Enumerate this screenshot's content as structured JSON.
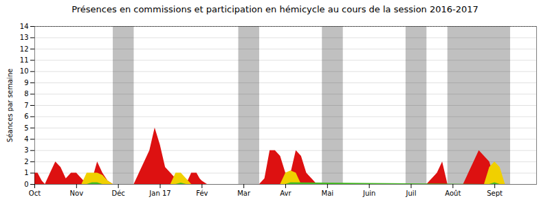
{
  "chart_data": {
    "type": "area",
    "title": "Présences en commissions et participation en hémicycle au cours de la session 2016-2017",
    "ylabel": "Séances par semaine",
    "xlim": [
      0,
      48
    ],
    "xticks": [
      {
        "value": 0,
        "label": "Oct"
      },
      {
        "value": 4,
        "label": "Nov"
      },
      {
        "value": 8,
        "label": "Déc"
      },
      {
        "value": 12,
        "label": "Jan 17"
      },
      {
        "value": 16,
        "label": "Fév"
      },
      {
        "value": 20,
        "label": "Mar"
      },
      {
        "value": 24,
        "label": "Avr"
      },
      {
        "value": 28,
        "label": "Mai"
      },
      {
        "value": 32,
        "label": "Juin"
      },
      {
        "value": 36,
        "label": "Juil"
      },
      {
        "value": 40,
        "label": "Août"
      },
      {
        "value": 44,
        "label": "Sept"
      }
    ],
    "ylim": [
      0,
      14
    ],
    "yticks": [
      0,
      1,
      2,
      3,
      4,
      5,
      6,
      7,
      8,
      9,
      10,
      11,
      12,
      13,
      14
    ],
    "grid": true,
    "bands": {
      "color": "#c0c0c0",
      "ranges": [
        [
          7.5,
          9.5
        ],
        [
          19.5,
          21.5
        ],
        [
          27.5,
          29.5
        ],
        [
          35.5,
          37.5
        ],
        [
          39.5,
          45.5
        ]
      ]
    },
    "reference_lines": [
      {
        "y": 14,
        "color": "#999999",
        "line_style": "dotted"
      }
    ],
    "series": [
      {
        "color": "#dd1111",
        "x": [
          0,
          0.3,
          0.7,
          1.0,
          1.5,
          2.0,
          2.5,
          3.0,
          3.5,
          4.0,
          4.5,
          5.0,
          5.3,
          5.7,
          6.0,
          6.5,
          7.0,
          7.5,
          9.5,
          10.0,
          10.5,
          11.0,
          11.5,
          12.0,
          12.5,
          13.0,
          13.5,
          14.0,
          14.5,
          15.0,
          15.5,
          15.8,
          16.0,
          16.5,
          17.0,
          17.5,
          18.0,
          18.5,
          19.0,
          19.5,
          21.5,
          22.0,
          22.5,
          23.0,
          23.5,
          24.0,
          24.5,
          25.0,
          25.5,
          26.0,
          26.5,
          27.0,
          27.5,
          37.5,
          38.0,
          38.5,
          39.0,
          39.5,
          41.0,
          41.5,
          42.0,
          42.5,
          43.0,
          43.5,
          44.0,
          44.5,
          45.0,
          45.5
        ],
        "values": [
          1.0,
          1.0,
          0.3,
          0.0,
          1.0,
          2.0,
          1.5,
          0.5,
          1.0,
          1.0,
          0.5,
          0.0,
          0.0,
          1.0,
          2.0,
          1.0,
          0.3,
          0.0,
          0.0,
          1.0,
          2.0,
          3.0,
          5.0,
          3.5,
          1.5,
          1.0,
          0.5,
          0.0,
          0.0,
          1.0,
          1.0,
          0.5,
          0.3,
          0.0,
          0.0,
          0.0,
          0.0,
          0.0,
          0.0,
          0.0,
          0.0,
          0.5,
          3.0,
          3.0,
          2.5,
          1.0,
          1.0,
          3.0,
          2.5,
          1.0,
          0.5,
          0.0,
          0.0,
          0.0,
          0.5,
          1.0,
          2.0,
          0.0,
          0.0,
          1.0,
          2.0,
          3.0,
          2.5,
          2.0,
          0.5,
          0.0,
          0.0,
          0.0
        ]
      },
      {
        "color": "#f0d000",
        "x": [
          4.5,
          5.0,
          5.5,
          6.0,
          6.5,
          7.0,
          7.5,
          13.0,
          13.5,
          14.0,
          14.5,
          15.0,
          15.5,
          23.5,
          24.0,
          24.5,
          25.0,
          25.5,
          43.0,
          43.5,
          44.0,
          44.5,
          45.0,
          45.5
        ],
        "values": [
          0.0,
          1.0,
          1.0,
          1.0,
          0.8,
          0.3,
          0.0,
          0.0,
          1.0,
          1.0,
          0.5,
          0.0,
          0.0,
          0.0,
          1.0,
          1.2,
          1.0,
          0.0,
          0.0,
          1.5,
          2.0,
          1.5,
          0.0,
          0.0
        ]
      },
      {
        "color": "#44bb22",
        "x": [
          5.0,
          5.5,
          6.0,
          6.5,
          13.5,
          14.0,
          14.5,
          24.0,
          24.5,
          43.5,
          44.0,
          44.5
        ],
        "values": [
          0.0,
          0.15,
          0.15,
          0.0,
          0.0,
          0.12,
          0.0,
          0.0,
          0.15,
          0.0,
          0.15,
          0.0
        ]
      }
    ]
  }
}
